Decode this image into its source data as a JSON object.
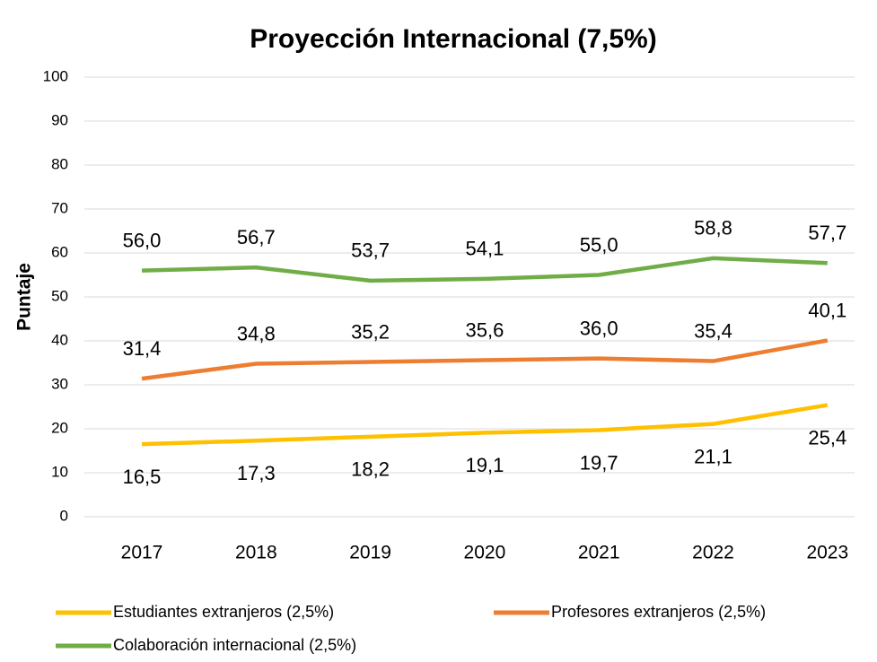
{
  "chart_data": {
    "type": "line",
    "title": "Proyección Internacional (7,5%)",
    "y_label": "Puntaje",
    "categories": [
      "2017",
      "2018",
      "2019",
      "2020",
      "2021",
      "2022",
      "2023"
    ],
    "series": [
      {
        "name": "Estudiantes extranjeros (2,5%)",
        "color": "#FFC000",
        "values": [
          16.5,
          17.3,
          18.2,
          19.1,
          19.7,
          21.1,
          25.4
        ],
        "value_labels": [
          "16,5",
          "17,3",
          "18,2",
          "19,1",
          "19,7",
          "21,1",
          "25,4"
        ]
      },
      {
        "name": "Profesores extranjeros (2,5%)",
        "color": "#ED7D31",
        "values": [
          31.4,
          34.8,
          35.2,
          35.6,
          36.0,
          35.4,
          40.1
        ],
        "value_labels": [
          "31,4",
          "34,8",
          "35,2",
          "35,6",
          "36,0",
          "35,4",
          "40,1"
        ]
      },
      {
        "name": "Colaboración internacional (2,5%)",
        "color": "#70AD47",
        "values": [
          56.0,
          56.7,
          53.7,
          54.1,
          55.0,
          58.8,
          57.7
        ],
        "value_labels": [
          "56,0",
          "56,7",
          "53,7",
          "54,1",
          "55,0",
          "58,8",
          "57,7"
        ]
      }
    ],
    "ylim": [
      0,
      100
    ],
    "yticks": [
      0,
      10,
      20,
      30,
      40,
      50,
      60,
      70,
      80,
      90,
      100
    ],
    "grid": true
  }
}
